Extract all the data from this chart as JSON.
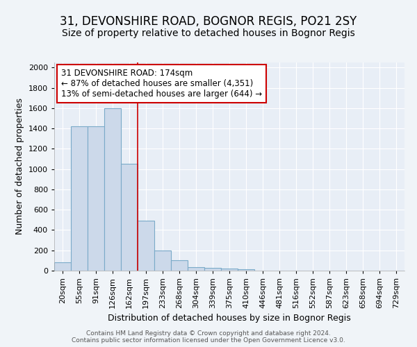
{
  "title1": "31, DEVONSHIRE ROAD, BOGNOR REGIS, PO21 2SY",
  "title2": "Size of property relative to detached houses in Bognor Regis",
  "xlabel": "Distribution of detached houses by size in Bognor Regis",
  "ylabel": "Number of detached properties",
  "categories": [
    "20sqm",
    "55sqm",
    "91sqm",
    "126sqm",
    "162sqm",
    "197sqm",
    "233sqm",
    "268sqm",
    "304sqm",
    "339sqm",
    "375sqm",
    "410sqm",
    "446sqm",
    "481sqm",
    "516sqm",
    "552sqm",
    "587sqm",
    "623sqm",
    "658sqm",
    "694sqm",
    "729sqm"
  ],
  "values": [
    80,
    1420,
    1420,
    1600,
    1050,
    490,
    200,
    100,
    35,
    25,
    20,
    15,
    0,
    0,
    0,
    0,
    0,
    0,
    0,
    0,
    0
  ],
  "bar_color": "#ccd9ea",
  "bar_edge_color": "#7aaac8",
  "vline_x_idx": 4.5,
  "vline_color": "#cc0000",
  "annotation_text": "31 DEVONSHIRE ROAD: 174sqm\n← 87% of detached houses are smaller (4,351)\n13% of semi-detached houses are larger (644) →",
  "annotation_box_color": "white",
  "annotation_box_edge": "#cc0000",
  "ylim": [
    0,
    2050
  ],
  "yticks": [
    0,
    200,
    400,
    600,
    800,
    1000,
    1200,
    1400,
    1600,
    1800,
    2000
  ],
  "bg_color": "#f0f4f8",
  "plot_bg_color": "#e8eef6",
  "grid_color": "white",
  "footer": "Contains HM Land Registry data © Crown copyright and database right 2024.\nContains public sector information licensed under the Open Government Licence v3.0.",
  "title_fontsize": 12,
  "subtitle_fontsize": 10,
  "tick_fontsize": 8,
  "ylabel_fontsize": 9,
  "xlabel_fontsize": 9
}
